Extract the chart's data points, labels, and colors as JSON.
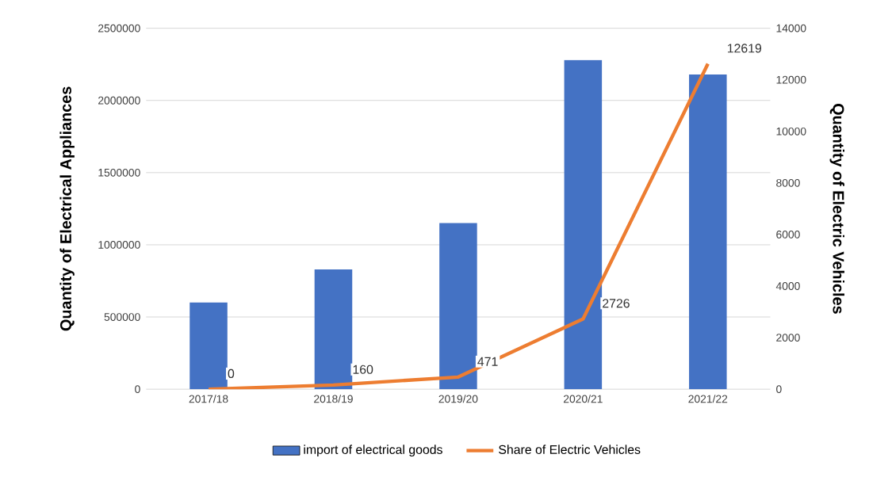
{
  "chart_data": {
    "type": "bar",
    "categories": [
      "2017/18",
      "2018/19",
      "2019/20",
      "2020/21",
      "2021/22"
    ],
    "series": [
      {
        "name": "import of electrical goods",
        "color": "#4472c4",
        "values": [
          600000,
          830000,
          1150000,
          2280000,
          2180000
        ]
      },
      {
        "name": "Share of Electric Vehicles",
        "type": "line",
        "axis": "y2",
        "color": "#ed7d31",
        "values": [
          0,
          160,
          471,
          2726,
          12619
        ],
        "value_labels": [
          "0",
          "160",
          "471",
          "2726",
          "12619"
        ]
      }
    ],
    "ylabel": "Quantity of Electrical Appliances",
    "y2label": "Quantity of Electric Vehicles",
    "ylim": [
      0,
      2500000
    ],
    "yticks": [
      0,
      500000,
      1000000,
      1500000,
      2000000,
      2500000
    ],
    "y2lim": [
      0,
      14000
    ],
    "y2ticks": [
      0,
      2000,
      4000,
      6000,
      8000,
      10000,
      12000,
      14000
    ],
    "grid": "y",
    "legend": "bottom"
  }
}
